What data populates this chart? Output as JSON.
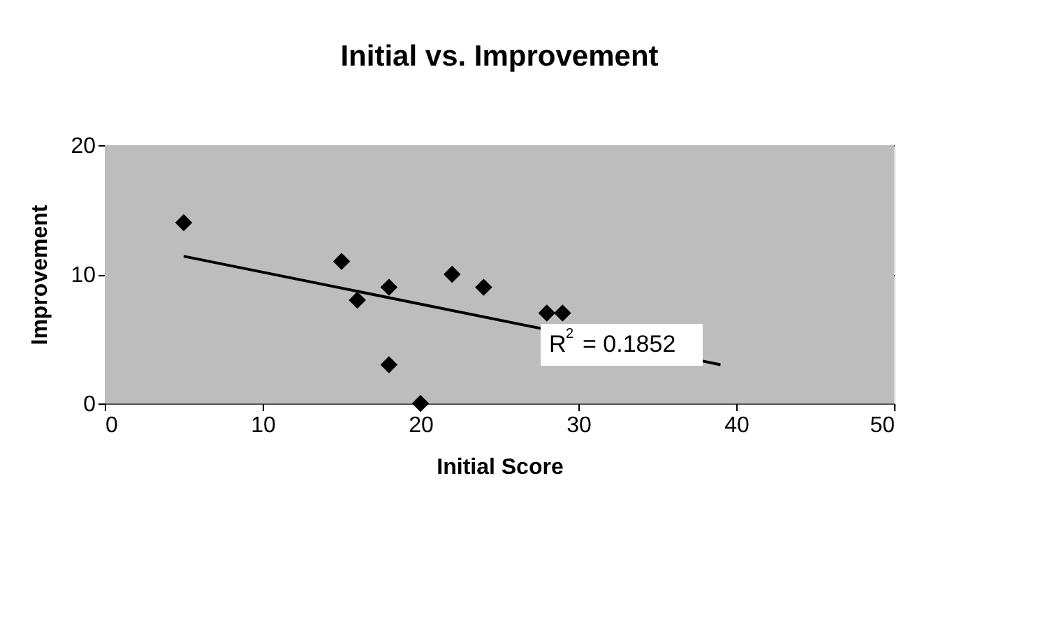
{
  "chart_data": {
    "type": "scatter",
    "title": "Initial vs. Improvement",
    "xlabel": "Initial Score",
    "ylabel": "Improvement",
    "xlim": [
      0,
      50
    ],
    "xticks": [
      0,
      10,
      20,
      30,
      40,
      50
    ],
    "ylim": [
      0,
      20
    ],
    "yticks": [
      0,
      10,
      20
    ],
    "grid": "y",
    "marker": "diamond",
    "series": [
      {
        "color": "#000000",
        "x": [
          5,
          15,
          16,
          18,
          18,
          20,
          22,
          24,
          28,
          29
        ],
        "values": [
          14,
          11,
          8,
          9,
          3,
          0,
          10,
          9,
          7,
          7
        ]
      },
      {
        "type": "line",
        "marker": "none",
        "color": "#000000",
        "x": [
          5,
          39
        ],
        "values": [
          11.4,
          3.0
        ]
      }
    ],
    "annotations": [
      "R$^{2}$ = 0.1852"
    ]
  }
}
